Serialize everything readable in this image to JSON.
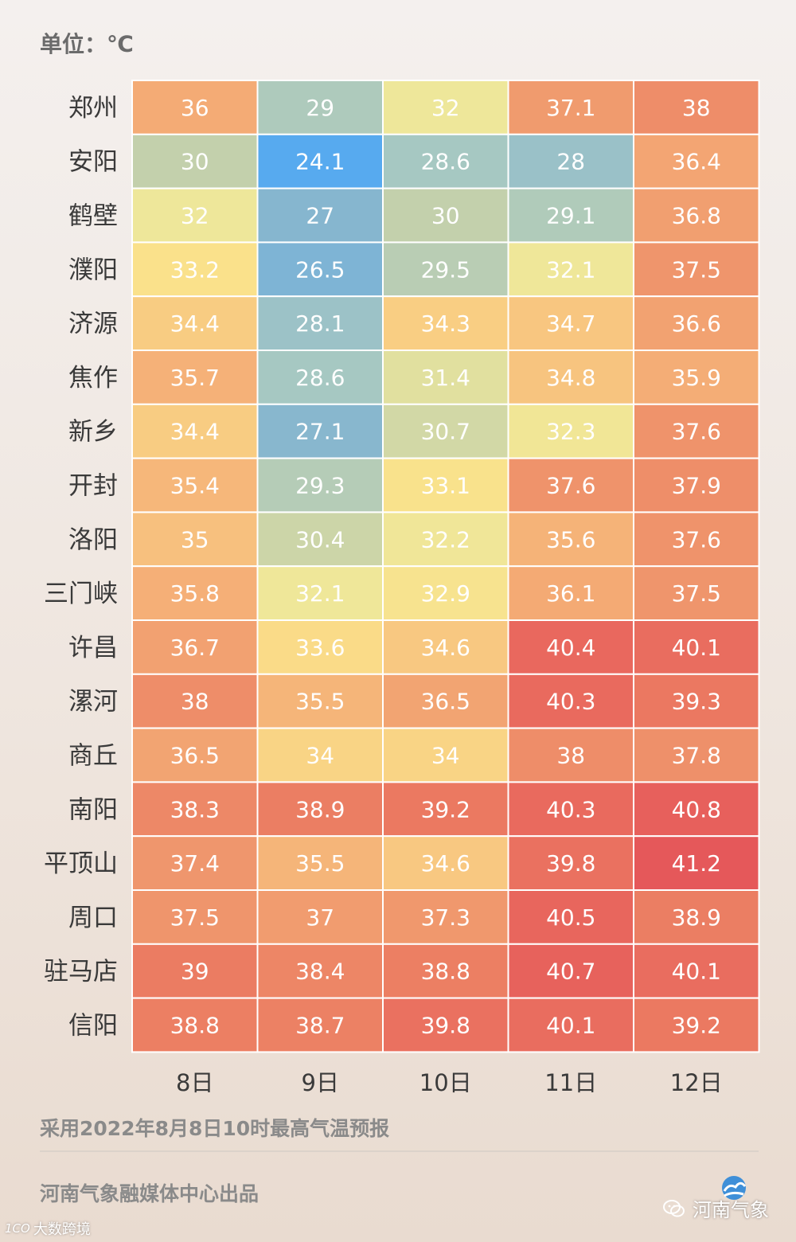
{
  "unit_label": "单位：℃",
  "footnote": "采用2022年8月8日10时最高气温预报",
  "producer": "河南气象融媒体中心出品",
  "brand_name": "河南气象",
  "watermark_mark": "1CO",
  "watermark_text": "大数跨境",
  "chart_data": {
    "type": "heatmap",
    "title": "",
    "xlabel": "",
    "ylabel": "",
    "unit": "℃",
    "columns": [
      "8日",
      "9日",
      "10日",
      "11日",
      "12日"
    ],
    "rows": [
      "郑州",
      "安阳",
      "鹤壁",
      "濮阳",
      "济源",
      "焦作",
      "新乡",
      "开封",
      "洛阳",
      "三门峡",
      "许昌",
      "漯河",
      "商丘",
      "南阳",
      "平顶山",
      "周口",
      "驻马店",
      "信阳"
    ],
    "values": [
      [
        36,
        29,
        32,
        37.1,
        38
      ],
      [
        30,
        24.1,
        28.6,
        28,
        36.4
      ],
      [
        32,
        27,
        30,
        29.1,
        36.8
      ],
      [
        33.2,
        26.5,
        29.5,
        32.1,
        37.5
      ],
      [
        34.4,
        28.1,
        34.3,
        34.7,
        36.6
      ],
      [
        35.7,
        28.6,
        31.4,
        34.8,
        35.9
      ],
      [
        34.4,
        27.1,
        30.7,
        32.3,
        37.6
      ],
      [
        35.4,
        29.3,
        33.1,
        37.6,
        37.9
      ],
      [
        35,
        30.4,
        32.2,
        35.6,
        37.6
      ],
      [
        35.8,
        32.1,
        32.9,
        36.1,
        37.5
      ],
      [
        36.7,
        33.6,
        34.6,
        40.4,
        40.1
      ],
      [
        38,
        35.5,
        36.5,
        40.3,
        39.3
      ],
      [
        36.5,
        34,
        34,
        38,
        37.8
      ],
      [
        38.3,
        38.9,
        39.2,
        40.3,
        40.8
      ],
      [
        37.4,
        35.5,
        34.6,
        39.8,
        41.2
      ],
      [
        37.5,
        37,
        37.3,
        40.5,
        38.9
      ],
      [
        39,
        38.4,
        38.8,
        40.7,
        40.1
      ],
      [
        38.8,
        38.7,
        39.8,
        40.1,
        39.2
      ]
    ],
    "color_scale": [
      {
        "value": 24,
        "color": "#55aaf0"
      },
      {
        "value": 27,
        "color": "#86b6cf"
      },
      {
        "value": 28.5,
        "color": "#a4c7c4"
      },
      {
        "value": 30,
        "color": "#c3d0ac"
      },
      {
        "value": 32,
        "color": "#eee79a"
      },
      {
        "value": 33.3,
        "color": "#fbe18a"
      },
      {
        "value": 34.6,
        "color": "#f8c881"
      },
      {
        "value": 36,
        "color": "#f4ab75"
      },
      {
        "value": 37.5,
        "color": "#ef956c"
      },
      {
        "value": 39,
        "color": "#eb7c62"
      },
      {
        "value": 40.3,
        "color": "#e96a5e"
      },
      {
        "value": 41.2,
        "color": "#e5585a"
      }
    ],
    "cell_text_color": "#ffffff",
    "grid": true,
    "legend": "none"
  }
}
